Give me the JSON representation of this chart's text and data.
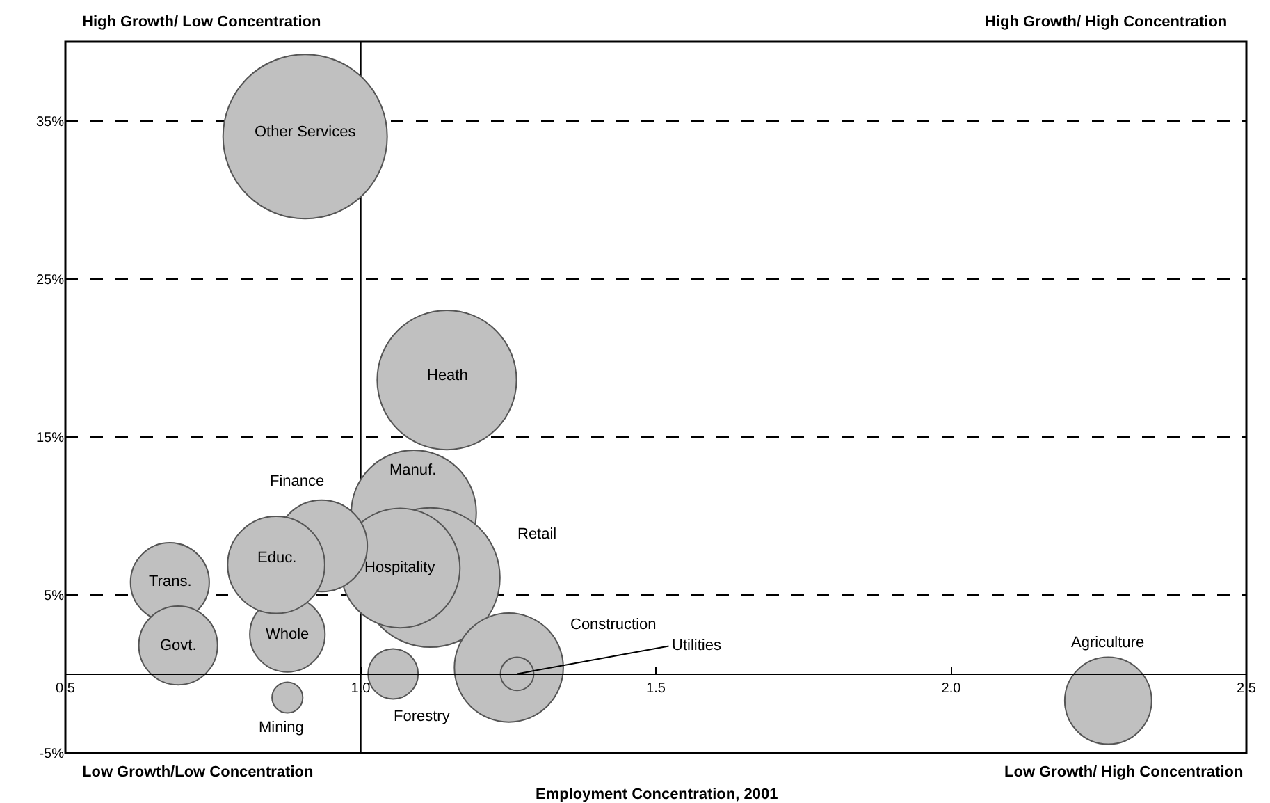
{
  "chart_data": {
    "type": "bubble",
    "xlabel": "Employment Concentration, 2001",
    "annotations": [
      "High Growth/ Low Concentration",
      "High Growth/ High Concentration",
      "Low Growth/Low Concentration",
      "Low Growth/ High Concentration"
    ],
    "series": [
      {
        "name": "Other Services",
        "color": "#c0c0c0",
        "x": [
          0.906
        ],
        "values": [
          34.0
        ],
        "sizes": [
          1
        ]
      },
      {
        "name": "Heath",
        "color": "#c0c0c0",
        "x": [
          1.146
        ],
        "values": [
          18.6
        ],
        "sizes": [
          0.72
        ]
      },
      {
        "name": "Manuf.",
        "color": "#c0c0c0",
        "x": [
          1.09
        ],
        "values": [
          10.2
        ],
        "sizes": [
          0.58
        ]
      },
      {
        "name": "Retail",
        "color": "#c0c0c0",
        "x": [
          1.118
        ],
        "values": [
          6.1
        ],
        "sizes": [
          0.72
        ]
      },
      {
        "name": "Hospitality",
        "color": "#c0c0c0",
        "x": [
          1.067
        ],
        "values": [
          6.7
        ],
        "sizes": [
          0.53
        ]
      },
      {
        "name": "Finance",
        "color": "#c0c0c0",
        "x": [
          0.934
        ],
        "values": [
          8.1
        ],
        "sizes": [
          0.31
        ]
      },
      {
        "name": "Whole",
        "color": "#c0c0c0",
        "x": [
          0.876
        ],
        "values": [
          2.5
        ],
        "sizes": [
          0.21
        ]
      },
      {
        "name": "Educ.",
        "color": "#c0c0c0",
        "x": [
          0.857
        ],
        "values": [
          6.9
        ],
        "sizes": [
          0.35
        ]
      },
      {
        "name": "Trans.",
        "color": "#c0c0c0",
        "x": [
          0.677
        ],
        "values": [
          5.8
        ],
        "sizes": [
          0.23
        ]
      },
      {
        "name": "Govt.",
        "color": "#c0c0c0",
        "x": [
          0.691
        ],
        "values": [
          1.8
        ],
        "sizes": [
          0.23
        ]
      },
      {
        "name": "Mining",
        "color": "#c0c0c0",
        "x": [
          0.876
        ],
        "values": [
          -1.5
        ],
        "sizes": [
          0.035
        ]
      },
      {
        "name": "Forestry",
        "color": "#c0c0c0",
        "x": [
          1.055
        ],
        "values": [
          0.0
        ],
        "sizes": [
          0.093
        ]
      },
      {
        "name": "Construction",
        "color": "#c0c0c0",
        "x": [
          1.251
        ],
        "values": [
          0.4
        ],
        "sizes": [
          0.44
        ]
      },
      {
        "name": "Utilities",
        "color": "#c0c0c0",
        "x": [
          1.265
        ],
        "values": [
          0.0
        ],
        "sizes": [
          0.041
        ]
      },
      {
        "name": "Agriculture",
        "color": "#c0c0c0",
        "x": [
          2.266
        ],
        "values": [
          -1.7
        ],
        "sizes": [
          0.28
        ]
      }
    ],
    "xlim": [
      0.5,
      2.5
    ],
    "xticks": [
      {
        "value": 0.5,
        "label": "0.5"
      },
      {
        "value": 1,
        "label": "1.0"
      },
      {
        "value": 1.5,
        "label": "1.5"
      },
      {
        "value": 2,
        "label": "2.0"
      },
      {
        "value": 2.5,
        "label": "2.5"
      }
    ],
    "ylim": [
      -5,
      40
    ],
    "yticks": [
      {
        "value": -5,
        "label": "-5%"
      },
      {
        "value": 5,
        "label": "5%"
      },
      {
        "value": 15,
        "label": "15%"
      },
      {
        "value": 25,
        "label": "25%"
      },
      {
        "value": 35,
        "label": "35%"
      }
    ],
    "ref_lines": [
      {
        "axis": "x",
        "value": 1
      }
    ],
    "grid": "y",
    "legend": false
  }
}
